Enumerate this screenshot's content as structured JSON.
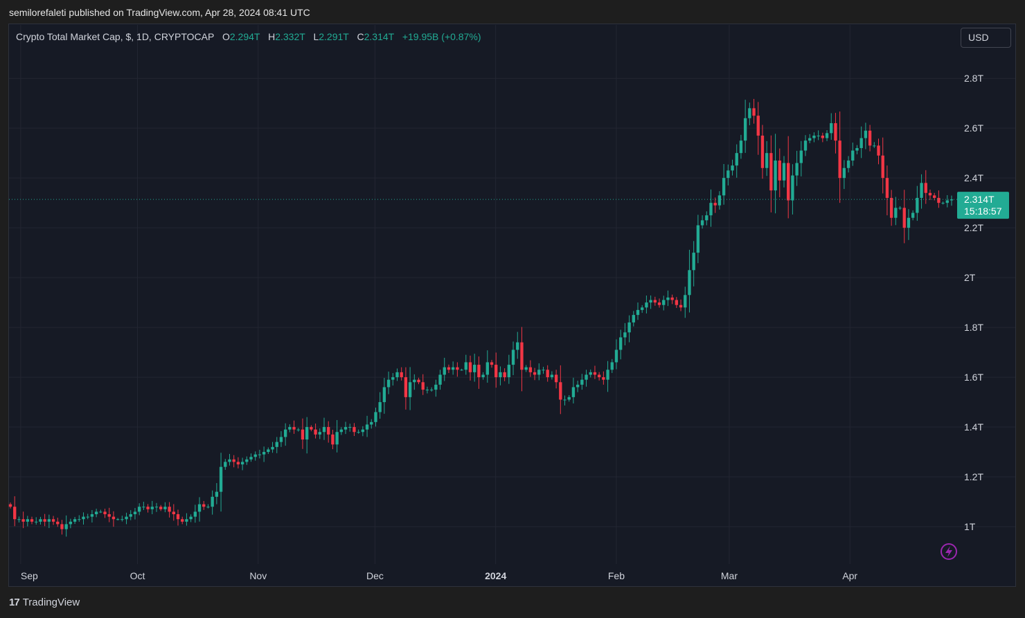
{
  "header": {
    "publisher_line": "semilorefaleti published on TradingView.com, Apr 28, 2024 08:41 UTC"
  },
  "legend": {
    "symbol": "Crypto Total Market Cap, $, 1D, CRYPTOCAP",
    "open_label": "O",
    "open": "2.294T",
    "high_label": "H",
    "high": "2.332T",
    "low_label": "L",
    "low": "2.291T",
    "close_label": "C",
    "close": "2.314T",
    "change": "+19.95B (+0.87%)"
  },
  "currency_button": "USD",
  "price_tag": {
    "price": "2.314T",
    "countdown": "15:18:57"
  },
  "footer": {
    "brand": "TradingView",
    "logo_glyph": "17"
  },
  "colors": {
    "up": "#22ab94",
    "down": "#f23645",
    "background": "#161a25",
    "grid": "#232632",
    "text": "#d1d4dc"
  },
  "icons": {
    "alert": "lightning-alert-icon"
  },
  "chart_data": {
    "type": "candlestick",
    "y_axis": {
      "ticks": [
        1.0,
        1.2,
        1.4,
        1.6,
        1.8,
        2.0,
        2.2,
        2.4,
        2.6,
        2.8
      ],
      "tick_labels": [
        "1T",
        "1.2T",
        "1.4T",
        "1.6T",
        "1.8T",
        "2T",
        "2.2T",
        "2.4T",
        "2.6T",
        "2.8T"
      ],
      "unit": "trillion USD",
      "range": [
        0.85,
        2.92
      ],
      "position": "right"
    },
    "x_axis": {
      "labels": [
        "Sep",
        "Oct",
        "Nov",
        "Dec",
        "2024",
        "Feb",
        "Mar",
        "Apr"
      ],
      "label_dates": [
        "2023-09-01",
        "2023-10-01",
        "2023-11-01",
        "2023-12-01",
        "2024-01-01",
        "2024-02-01",
        "2024-03-01",
        "2024-04-01"
      ],
      "start": "2023-08-29",
      "end": "2024-04-28"
    },
    "last_close": 2.314,
    "grid": true,
    "series": [
      {
        "name": "Crypto Total Market Cap",
        "interval": "1D",
        "closes": [
          1.08,
          1.03,
          1.03,
          1.02,
          1.03,
          1.02,
          1.02,
          1.03,
          1.02,
          1.03,
          1.02,
          1.01,
          0.99,
          1.01,
          1.02,
          1.03,
          1.03,
          1.04,
          1.04,
          1.05,
          1.06,
          1.06,
          1.05,
          1.04,
          1.03,
          1.03,
          1.03,
          1.04,
          1.05,
          1.06,
          1.08,
          1.08,
          1.07,
          1.08,
          1.08,
          1.07,
          1.08,
          1.06,
          1.05,
          1.03,
          1.02,
          1.03,
          1.04,
          1.06,
          1.09,
          1.08,
          1.08,
          1.12,
          1.14,
          1.24,
          1.26,
          1.27,
          1.26,
          1.25,
          1.26,
          1.27,
          1.28,
          1.29,
          1.29,
          1.3,
          1.31,
          1.32,
          1.34,
          1.36,
          1.39,
          1.4,
          1.39,
          1.39,
          1.35,
          1.4,
          1.39,
          1.37,
          1.38,
          1.4,
          1.37,
          1.33,
          1.38,
          1.39,
          1.4,
          1.4,
          1.38,
          1.38,
          1.39,
          1.41,
          1.42,
          1.46,
          1.5,
          1.56,
          1.59,
          1.6,
          1.62,
          1.6,
          1.52,
          1.58,
          1.59,
          1.58,
          1.55,
          1.55,
          1.55,
          1.57,
          1.61,
          1.64,
          1.63,
          1.64,
          1.63,
          1.63,
          1.66,
          1.62,
          1.65,
          1.6,
          1.61,
          1.66,
          1.65,
          1.6,
          1.62,
          1.6,
          1.65,
          1.71,
          1.74,
          1.63,
          1.64,
          1.62,
          1.61,
          1.63,
          1.63,
          1.6,
          1.61,
          1.58,
          1.51,
          1.51,
          1.52,
          1.56,
          1.57,
          1.59,
          1.61,
          1.62,
          1.61,
          1.6,
          1.59,
          1.63,
          1.66,
          1.71,
          1.76,
          1.78,
          1.82,
          1.85,
          1.87,
          1.88,
          1.9,
          1.91,
          1.9,
          1.89,
          1.91,
          1.92,
          1.91,
          1.89,
          1.88,
          1.93,
          2.03,
          2.1,
          2.21,
          2.23,
          2.25,
          2.3,
          2.29,
          2.33,
          2.4,
          2.43,
          2.45,
          2.5,
          2.55,
          2.64,
          2.68,
          2.65,
          2.57,
          2.44,
          2.5,
          2.35,
          2.47,
          2.39,
          2.46,
          2.31,
          2.41,
          2.46,
          2.51,
          2.55,
          2.56,
          2.57,
          2.57,
          2.56,
          2.58,
          2.62,
          2.55,
          2.4,
          2.44,
          2.47,
          2.51,
          2.52,
          2.56,
          2.59,
          2.53,
          2.53,
          2.49,
          2.4,
          2.32,
          2.24,
          2.28,
          2.28,
          2.2,
          2.24,
          2.26,
          2.32,
          2.38,
          2.34,
          2.33,
          2.32,
          2.3,
          2.3,
          2.31,
          2.314
        ]
      }
    ]
  }
}
